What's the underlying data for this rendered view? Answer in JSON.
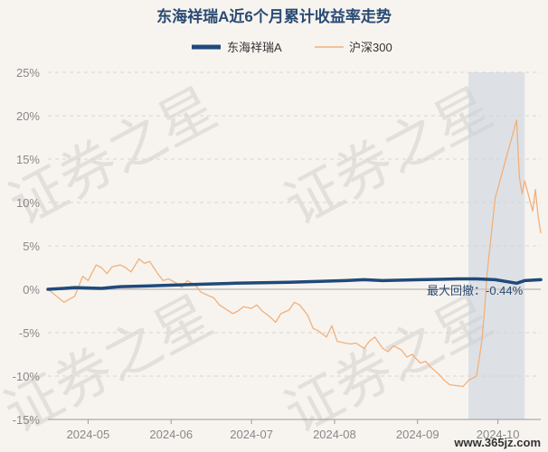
{
  "chart_data": {
    "type": "line",
    "title": "东海祥瑞A近6个月累计收益率走势",
    "legend_position": "top",
    "y_unit": "%",
    "ylim": [
      -15,
      25
    ],
    "y_ticks": [
      "25%",
      "20%",
      "15%",
      "10%",
      "5%",
      "0%",
      "-5%",
      "-10%",
      "-15%"
    ],
    "y_tick_values": [
      25,
      20,
      15,
      10,
      5,
      0,
      -5,
      -10,
      -15
    ],
    "x_ticks": [
      "2024-05",
      "2024-06",
      "2024-07",
      "2024-08",
      "2024-09",
      "2024-10"
    ],
    "x_tick_dates": [
      "2024-05-01",
      "2024-06-01",
      "2024-07-01",
      "2024-08-01",
      "2024-09-01",
      "2024-10-01"
    ],
    "xlim": [
      "2024-04-16",
      "2024-10-17"
    ],
    "grid": "horizontal dashed",
    "series": [
      {
        "name": "东海祥瑞A",
        "color": "#1f4a7a",
        "points": [
          [
            "2024-04-16",
            0.0
          ],
          [
            "2024-04-22",
            0.1
          ],
          [
            "2024-04-26",
            0.2
          ],
          [
            "2024-05-06",
            0.1
          ],
          [
            "2024-05-13",
            0.3
          ],
          [
            "2024-05-24",
            0.4
          ],
          [
            "2024-06-03",
            0.5
          ],
          [
            "2024-06-14",
            0.6
          ],
          [
            "2024-06-25",
            0.7
          ],
          [
            "2024-07-05",
            0.75
          ],
          [
            "2024-07-15",
            0.8
          ],
          [
            "2024-07-25",
            0.9
          ],
          [
            "2024-08-05",
            1.0
          ],
          [
            "2024-08-12",
            1.1
          ],
          [
            "2024-08-19",
            1.0
          ],
          [
            "2024-08-26",
            1.05
          ],
          [
            "2024-09-02",
            1.1
          ],
          [
            "2024-09-09",
            1.15
          ],
          [
            "2024-09-16",
            1.2
          ],
          [
            "2024-09-23",
            1.2
          ],
          [
            "2024-09-30",
            1.1
          ],
          [
            "2024-10-08",
            0.7
          ],
          [
            "2024-10-11",
            1.0
          ],
          [
            "2024-10-17",
            1.1
          ]
        ]
      },
      {
        "name": "沪深300",
        "color": "#f2b07a",
        "points": [
          [
            "2024-04-16",
            0.0
          ],
          [
            "2024-04-18",
            -0.5
          ],
          [
            "2024-04-22",
            -1.5
          ],
          [
            "2024-04-26",
            -0.8
          ],
          [
            "2024-04-29",
            1.5
          ],
          [
            "2024-05-01",
            1.0
          ],
          [
            "2024-05-04",
            2.8
          ],
          [
            "2024-05-06",
            2.5
          ],
          [
            "2024-05-08",
            1.8
          ],
          [
            "2024-05-10",
            2.6
          ],
          [
            "2024-05-13",
            2.8
          ],
          [
            "2024-05-15",
            2.5
          ],
          [
            "2024-05-17",
            2.0
          ],
          [
            "2024-05-20",
            3.5
          ],
          [
            "2024-05-22",
            3.0
          ],
          [
            "2024-05-24",
            3.2
          ],
          [
            "2024-05-27",
            1.8
          ],
          [
            "2024-05-29",
            1.0
          ],
          [
            "2024-05-31",
            1.2
          ],
          [
            "2024-06-03",
            0.7
          ],
          [
            "2024-06-05",
            0.2
          ],
          [
            "2024-06-07",
            1.0
          ],
          [
            "2024-06-10",
            0.5
          ],
          [
            "2024-06-12",
            -0.3
          ],
          [
            "2024-06-14",
            -0.6
          ],
          [
            "2024-06-17",
            -1.0
          ],
          [
            "2024-06-19",
            -1.8
          ],
          [
            "2024-06-21",
            -2.2
          ],
          [
            "2024-06-24",
            -2.8
          ],
          [
            "2024-06-26",
            -2.5
          ],
          [
            "2024-06-28",
            -2.0
          ],
          [
            "2024-07-01",
            -2.2
          ],
          [
            "2024-07-03",
            -1.8
          ],
          [
            "2024-07-05",
            -2.5
          ],
          [
            "2024-07-08",
            -3.2
          ],
          [
            "2024-07-10",
            -3.8
          ],
          [
            "2024-07-12",
            -2.8
          ],
          [
            "2024-07-15",
            -2.4
          ],
          [
            "2024-07-17",
            -1.5
          ],
          [
            "2024-07-19",
            -1.8
          ],
          [
            "2024-07-22",
            -3.0
          ],
          [
            "2024-07-24",
            -4.5
          ],
          [
            "2024-07-26",
            -4.8
          ],
          [
            "2024-07-29",
            -5.5
          ],
          [
            "2024-07-31",
            -4.2
          ],
          [
            "2024-08-02",
            -6.0
          ],
          [
            "2024-08-05",
            -6.2
          ],
          [
            "2024-08-07",
            -6.3
          ],
          [
            "2024-08-09",
            -6.2
          ],
          [
            "2024-08-12",
            -6.8
          ],
          [
            "2024-08-14",
            -6.0
          ],
          [
            "2024-08-16",
            -5.5
          ],
          [
            "2024-08-19",
            -6.8
          ],
          [
            "2024-08-21",
            -7.2
          ],
          [
            "2024-08-23",
            -6.5
          ],
          [
            "2024-08-26",
            -7.0
          ],
          [
            "2024-08-28",
            -7.8
          ],
          [
            "2024-08-30",
            -7.5
          ],
          [
            "2024-09-02",
            -8.5
          ],
          [
            "2024-09-04",
            -8.3
          ],
          [
            "2024-09-06",
            -9.0
          ],
          [
            "2024-09-09",
            -9.8
          ],
          [
            "2024-09-11",
            -10.5
          ],
          [
            "2024-09-13",
            -11.0
          ],
          [
            "2024-09-18",
            -11.2
          ],
          [
            "2024-09-20",
            -10.5
          ],
          [
            "2024-09-23",
            -10.0
          ],
          [
            "2024-09-24",
            -8.0
          ],
          [
            "2024-09-25",
            -6.0
          ],
          [
            "2024-09-26",
            -2.5
          ],
          [
            "2024-09-27",
            2.0
          ],
          [
            "2024-09-30",
            10.5
          ],
          [
            "2024-10-08",
            19.5
          ],
          [
            "2024-10-09",
            13.0
          ],
          [
            "2024-10-10",
            11.0
          ],
          [
            "2024-10-11",
            12.5
          ],
          [
            "2024-10-14",
            9.0
          ],
          [
            "2024-10-15",
            11.5
          ],
          [
            "2024-10-16",
            8.5
          ],
          [
            "2024-10-17",
            6.5
          ]
        ]
      }
    ],
    "drawdown": {
      "label": "最大回撤：-0.44%",
      "start": "2024-09-20",
      "end": "2024-10-11",
      "color": "#c8d2dc"
    }
  },
  "watermark": {
    "text": "证券之星"
  },
  "site": {
    "text": "www.365jz.com"
  }
}
